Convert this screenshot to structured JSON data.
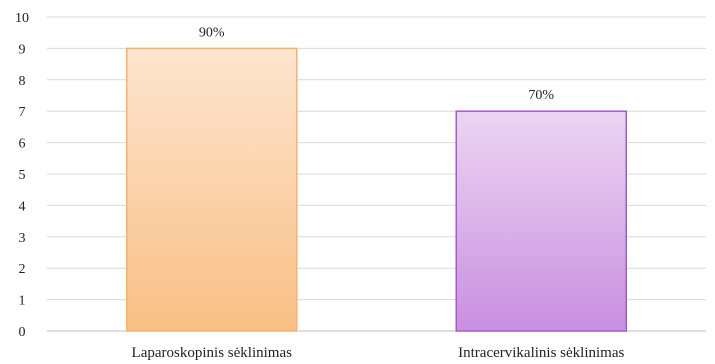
{
  "chart_data": {
    "type": "bar",
    "categories": [
      "Laparoskopinis sėklinimas",
      "Intracervikalinis sėklinimas"
    ],
    "values": [
      9,
      7
    ],
    "data_labels": [
      "90%",
      "70%"
    ],
    "ylim": [
      0,
      10
    ],
    "yticks": [
      "0",
      "1",
      "2",
      "3",
      "4",
      "5",
      "6",
      "7",
      "8",
      "9",
      "10"
    ],
    "grid": true,
    "legend": "none",
    "bar_colors": [
      {
        "top": "#fde5cf",
        "bottom": "#f9bf85",
        "border": "#f6b26b"
      },
      {
        "top": "#ecd5f1",
        "bottom": "#c98fe1",
        "border": "#a35bc6"
      }
    ]
  }
}
